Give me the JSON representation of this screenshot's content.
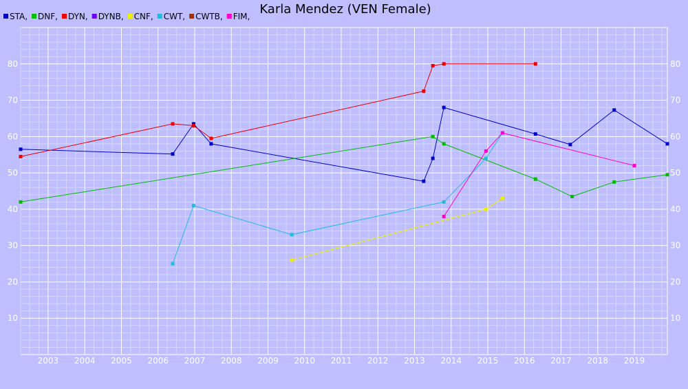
{
  "chart_data": {
    "type": "line",
    "title": "Karla Mendez (VEN Female)",
    "xlabel": "",
    "ylabel": "",
    "x_ticks": [
      "2003",
      "2004",
      "2005",
      "2006",
      "2007",
      "2008",
      "2009",
      "2010",
      "2011",
      "2012",
      "2013",
      "2014",
      "2015",
      "2016",
      "2017",
      "2018",
      "2019"
    ],
    "y_ticks": [
      10,
      20,
      30,
      40,
      50,
      60,
      70,
      80
    ],
    "xlim": [
      2002.25,
      2019.9
    ],
    "ylim": [
      0,
      90
    ],
    "grid": true,
    "legend_position": "top-left",
    "series": [
      {
        "name": "STA,",
        "color": "#0000cc",
        "points": [
          [
            2002.25,
            56.5
          ],
          [
            2006.4,
            55.2
          ],
          [
            2006.97,
            63.5
          ],
          [
            2007.45,
            58
          ],
          [
            2013.25,
            47.7
          ],
          [
            2013.5,
            54
          ],
          [
            2013.8,
            68
          ],
          [
            2016.3,
            60.7
          ],
          [
            2017.25,
            57.8
          ],
          [
            2018.45,
            67.3
          ],
          [
            2019.9,
            58
          ]
        ]
      },
      {
        "name": "DNF,",
        "color": "#00bb00",
        "points": [
          [
            2002.25,
            42
          ],
          [
            2013.5,
            60
          ],
          [
            2013.8,
            58
          ],
          [
            2016.3,
            48.3
          ],
          [
            2017.3,
            43.5
          ],
          [
            2018.45,
            47.5
          ],
          [
            2019.9,
            49.5
          ]
        ]
      },
      {
        "name": "DYN,",
        "color": "#ee0000",
        "points": [
          [
            2002.25,
            54.5
          ],
          [
            2006.4,
            63.5
          ],
          [
            2006.97,
            63
          ],
          [
            2007.45,
            59.5
          ],
          [
            2013.25,
            72.5
          ],
          [
            2013.5,
            79.5
          ],
          [
            2013.8,
            80
          ],
          [
            2016.3,
            80
          ]
        ]
      },
      {
        "name": "DYNB,",
        "color": "#6600ee",
        "points": []
      },
      {
        "name": "CNF,",
        "color": "#eeee00",
        "points": [
          [
            2009.65,
            26
          ],
          [
            2014.95,
            40
          ],
          [
            2015.4,
            43
          ]
        ]
      },
      {
        "name": "CWT,",
        "color": "#22bbdd",
        "points": [
          [
            2006.4,
            25
          ],
          [
            2006.97,
            41
          ],
          [
            2009.65,
            33
          ],
          [
            2013.8,
            42
          ],
          [
            2014.95,
            54
          ],
          [
            2015.4,
            61
          ]
        ]
      },
      {
        "name": "CWTB,",
        "color": "#993300",
        "points": []
      },
      {
        "name": "FIM,",
        "color": "#ff00cc",
        "points": [
          [
            2013.8,
            38
          ],
          [
            2014.95,
            56
          ],
          [
            2015.4,
            61
          ],
          [
            2019.0,
            52
          ]
        ]
      }
    ]
  }
}
